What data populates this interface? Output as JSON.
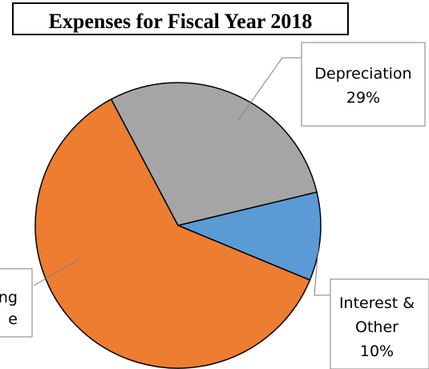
{
  "chart_data": {
    "type": "pie",
    "title": "Expenses for Fiscal Year 2018",
    "slices": [
      {
        "label_lines": [
          "Interest &",
          "Other",
          "10%"
        ],
        "value": 10,
        "color": "#5b9bd5"
      },
      {
        "label_lines": [
          "ng",
          "e"
        ],
        "value": 61,
        "color": "#ed7d31"
      },
      {
        "label_lines": [
          "Depreciation",
          "29%"
        ],
        "value": 29,
        "color": "#a5a5a5"
      }
    ]
  }
}
